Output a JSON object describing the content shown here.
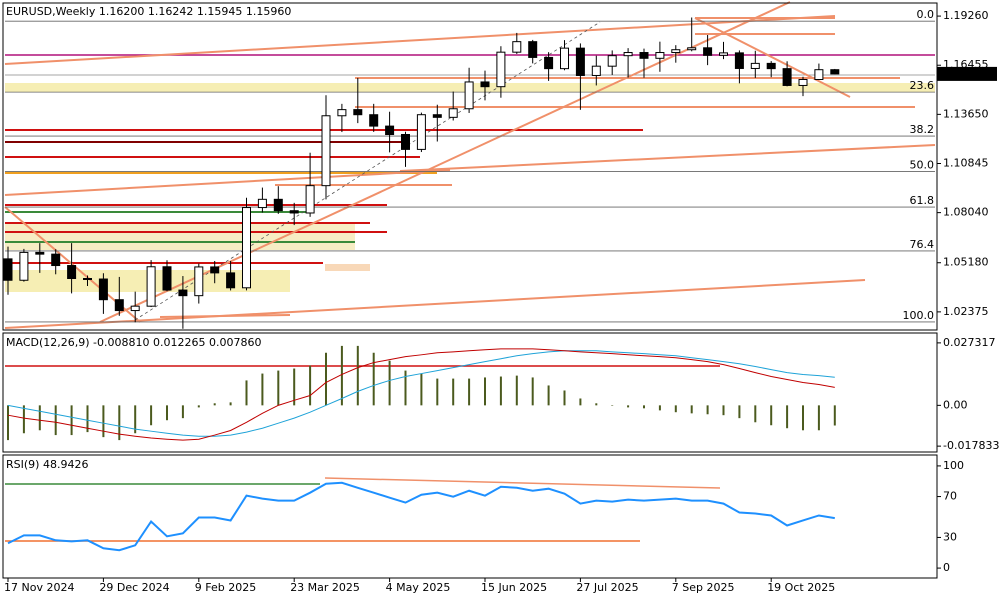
{
  "chart_data": [
    {
      "type": "candlestick",
      "symbol": "EURUSD,Weekly",
      "ohlc_labels": [
        "1.16200",
        "1.16242",
        "1.15945",
        "1.15960"
      ],
      "categories": [
        "17 Nov 2024",
        null,
        null,
        null,
        null,
        null,
        "29 Dec 2024",
        null,
        null,
        null,
        null,
        null,
        "9 Feb 2025",
        null,
        null,
        null,
        null,
        null,
        "23 Mar 2025",
        null,
        null,
        null,
        null,
        null,
        "4 May 2025",
        null,
        null,
        null,
        null,
        null,
        "15 Jun 2025",
        null,
        null,
        null,
        null,
        null,
        "27 Jul 2025",
        null,
        null,
        null,
        null,
        null,
        "7 Sep 2025",
        null,
        null,
        null,
        null,
        null,
        "19 Oct 2025",
        null,
        null,
        null,
        null
      ],
      "open": [
        1.054,
        1.0418,
        1.0577,
        1.0567,
        1.0502,
        1.0428,
        1.0425,
        1.0307,
        1.0245,
        1.027,
        1.0495,
        1.0362,
        1.033,
        1.0494,
        1.046,
        1.0375,
        1.0833,
        1.088,
        1.0815,
        1.0802,
        1.0958,
        1.1357,
        1.1392,
        1.1363,
        1.1298,
        1.125,
        1.1165,
        1.1363,
        1.1348,
        1.1397,
        1.155,
        1.1523,
        1.172,
        1.178,
        1.169,
        1.1626,
        1.1743,
        1.1587,
        1.164,
        1.17,
        1.1718,
        1.1685,
        1.1718,
        1.1734,
        1.1745,
        1.1702,
        1.1716,
        1.1627,
        1.1656,
        1.1626,
        1.153,
        1.1564,
        1.162
      ],
      "high": [
        1.061,
        1.0597,
        1.063,
        1.0595,
        1.063,
        1.0445,
        1.0458,
        1.0437,
        1.0353,
        1.0533,
        1.0532,
        1.0442,
        1.0513,
        1.0528,
        1.0528,
        1.0889,
        1.0947,
        1.0955,
        1.086,
        1.1146,
        1.1474,
        1.1425,
        1.1573,
        1.1425,
        1.138,
        1.1266,
        1.1375,
        1.142,
        1.1495,
        1.1631,
        1.1615,
        1.1754,
        1.183,
        1.179,
        1.172,
        1.1789,
        1.177,
        1.17,
        1.173,
        1.1743,
        1.174,
        1.178,
        1.176,
        1.1918,
        1.1818,
        1.1779,
        1.173,
        1.1728,
        1.1669,
        1.1668,
        1.158,
        1.1655,
        1.16242
      ],
      "low": [
        1.0335,
        1.041,
        1.046,
        1.0452,
        1.0343,
        1.0385,
        1.0226,
        1.0215,
        1.0178,
        1.0265,
        1.0355,
        1.0141,
        1.0285,
        1.0401,
        1.036,
        1.036,
        1.0805,
        1.0797,
        1.0733,
        1.078,
        1.088,
        1.1264,
        1.1315,
        1.1265,
        1.1148,
        1.1065,
        1.115,
        1.121,
        1.133,
        1.1373,
        1.1445,
        1.146,
        1.171,
        1.1656,
        1.1556,
        1.1617,
        1.1391,
        1.153,
        1.159,
        1.1575,
        1.1574,
        1.1608,
        1.166,
        1.1725,
        1.1646,
        1.168,
        1.1542,
        1.1573,
        1.1577,
        1.1525,
        1.1469,
        1.1567,
        1.15945
      ],
      "close": [
        1.0418,
        1.0577,
        1.0567,
        1.0502,
        1.0428,
        1.0425,
        1.0307,
        1.0245,
        1.027,
        1.0495,
        1.0362,
        1.033,
        1.0494,
        1.046,
        1.0375,
        1.0833,
        1.088,
        1.0815,
        1.0802,
        1.0958,
        1.1357,
        1.1392,
        1.1363,
        1.1298,
        1.125,
        1.1165,
        1.1363,
        1.1348,
        1.1397,
        1.155,
        1.1523,
        1.172,
        1.178,
        1.169,
        1.1626,
        1.1743,
        1.1587,
        1.164,
        1.17,
        1.1718,
        1.1685,
        1.1718,
        1.1734,
        1.1745,
        1.1702,
        1.1716,
        1.1627,
        1.1656,
        1.1626,
        1.153,
        1.1564,
        1.162,
        1.1596
      ],
      "bull_color": "#ffffff",
      "bear_color": "#000000",
      "ylim": [
        1.0134,
        1.1995
      ],
      "yticks": [
        {
          "value": 1.1926,
          "label": "1.19260"
        },
        1.16455,
        {
          "value": 1.1365,
          "label": "1.13650"
        },
        1.10845,
        {
          "value": 1.0804,
          "label": "1.08040"
        },
        {
          "value": 1.0518,
          "label": "1.05180"
        },
        1.02375
      ],
      "fibonacci": {
        "range": [
          1.1897,
          1.018
        ],
        "levels": [
          {
            "value": 0,
            "label": "0.0"
          },
          23.6,
          38.2,
          {
            "value": 50,
            "label": "50.0"
          },
          61.8,
          76.4,
          {
            "value": 100,
            "label": "100.0"
          }
        ]
      }
    },
    {
      "type": "macd",
      "label": "MACD(12,26,9)",
      "value_labels": [
        "-0.008810",
        "0.012265",
        "0.007860"
      ],
      "color": "#4b5a1e",
      "histogram": [
        -0.0152,
        -0.0122,
        -0.0109,
        -0.013,
        -0.013,
        -0.0117,
        -0.0139,
        -0.0152,
        -0.0122,
        -0.0087,
        -0.0065,
        -0.0056,
        -0.0009,
        0.0009,
        0.0013,
        0.0109,
        0.0139,
        0.0152,
        0.0161,
        0.0174,
        0.023,
        0.026,
        0.026,
        0.023,
        0.0195,
        0.0152,
        0.0139,
        0.0117,
        0.0117,
        0.0117,
        0.0122,
        0.0126,
        0.013,
        0.0122,
        0.0087,
        0.0065,
        0.003,
        0.0009,
        0,
        -0.0009,
        -0.0013,
        -0.0022,
        -0.003,
        -0.0035,
        -0.0039,
        -0.0043,
        -0.0056,
        -0.0074,
        -0.0087,
        -0.01,
        -0.0109,
        -0.0109,
        -0.00881
      ],
      "lines": [
        {
          "color": "#1fa3d8",
          "values": [
            0,
            -0.0013,
            -0.0026,
            -0.0039,
            -0.0052,
            -0.0065,
            -0.0078,
            -0.0091,
            -0.0104,
            -0.0113,
            -0.0122,
            -0.013,
            -0.0135,
            -0.0135,
            -0.013,
            -0.0117,
            -0.01,
            -0.0078,
            -0.0056,
            -0.003,
            0,
            0.003,
            0.0061,
            0.0087,
            0.0109,
            0.0126,
            0.0139,
            0.0152,
            0.0165,
            0.0178,
            0.0191,
            0.0204,
            0.0217,
            0.0226,
            0.0234,
            0.0239,
            0.0239,
            0.0239,
            0.0234,
            0.023,
            0.0226,
            0.0221,
            0.0217,
            0.0208,
            0.02,
            0.0191,
            0.0182,
            0.017,
            0.0156,
            0.0143,
            0.0135,
            0.013,
            0.012265
          ]
        },
        {
          "color": "#c00000",
          "values": [
            -0.0043,
            -0.0056,
            -0.0065,
            -0.0074,
            -0.0087,
            -0.01,
            -0.0113,
            -0.0126,
            -0.0135,
            -0.0143,
            -0.0148,
            -0.0152,
            -0.0148,
            -0.013,
            -0.011,
            -0.0074,
            -0.0035,
            0,
            0.0022,
            0.0043,
            0.01,
            0.0135,
            0.0165,
            0.0187,
            0.02,
            0.0213,
            0.0221,
            0.023,
            0.0234,
            0.0239,
            0.0243,
            0.0247,
            0.0247,
            0.0247,
            0.0243,
            0.0239,
            0.0234,
            0.023,
            0.0226,
            0.0221,
            0.0217,
            0.0213,
            0.0208,
            0.02,
            0.0191,
            0.0178,
            0.0161,
            0.0143,
            0.0126,
            0.0113,
            0.01,
            0.0091,
            0.00786
          ]
        }
      ],
      "ylim": [
        -0.0204,
        0.0312
      ],
      "yticks": [
        0.027317,
        {
          "value": 0,
          "label": "0.00"
        },
        -0.017833
      ]
    },
    {
      "type": "line",
      "label": "RSI(9)",
      "value_label": "48.9426",
      "color": "#1e90ff",
      "values": [
        24.3,
        32,
        32,
        27.2,
        26.2,
        27.2,
        19.4,
        17.5,
        22.3,
        45.6,
        31.1,
        34,
        49.5,
        49.5,
        46.6,
        70.9,
        68,
        66,
        66,
        73.8,
        82.5,
        83.5,
        78.6,
        73.8,
        68.9,
        64.1,
        71.8,
        73.8,
        69.9,
        75.7,
        70.9,
        79.6,
        78.6,
        75.7,
        77.7,
        72.8,
        63.1,
        66,
        65,
        67,
        66,
        67,
        68,
        66,
        66,
        63.1,
        54.4,
        53.4,
        51.5,
        41.7,
        46.6,
        51.5,
        48.9426
      ],
      "ylim": [
        -9.7,
        109.7
      ],
      "yticks": [
        100,
        70,
        30,
        0
      ]
    }
  ]
}
